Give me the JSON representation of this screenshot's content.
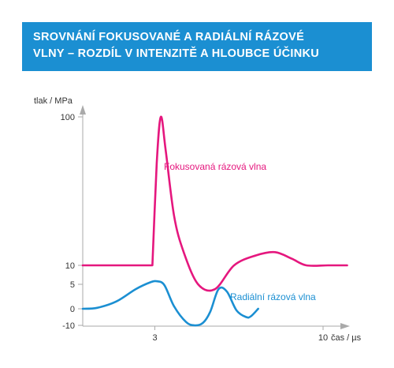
{
  "chart_data": {
    "type": "line",
    "title_lines": [
      "SROVNÁNÍ FOKUSOVANÉ A RADIÁLNÍ RÁZOVÉ",
      "VLNY – ROZDÍL V INTENZITĚ A HLOUBCE ÚČINKU"
    ],
    "xlabel": "čas / µs",
    "ylabel": "tlak / MPa",
    "x_ticks": [
      3,
      10
    ],
    "y_ticks": [
      -10,
      0,
      5,
      10,
      100
    ],
    "grid": false,
    "series": [
      {
        "name": "Fokusovaná rázová vlna",
        "color": "#e5177e",
        "x": [
          0,
          2.9,
          3.08,
          3.25,
          3.45,
          3.8,
          4.2,
          4.8,
          5.5,
          6.3,
          7.2,
          8.0,
          8.7,
          9.3,
          10.2,
          11.0
        ],
        "y": [
          10,
          10,
          72,
          100,
          80,
          40,
          18,
          5,
          4,
          10,
          16,
          18,
          14,
          10,
          10,
          10
        ]
      },
      {
        "name": "Radiální rázová vlna",
        "color": "#1b8fd2",
        "x": [
          0,
          0.6,
          1.4,
          2.2,
          2.8,
          3.1,
          3.4,
          3.8,
          4.3,
          4.65,
          5.0,
          5.3,
          5.65,
          6.0,
          6.4,
          6.8,
          7.0,
          7.3
        ],
        "y": [
          0,
          0.2,
          1.5,
          4.0,
          5.5,
          5.8,
          4.8,
          0.5,
          -8.0,
          -10.0,
          -8.5,
          -2.0,
          4.0,
          3.5,
          -1.0,
          -5.0,
          -4.5,
          0
        ]
      }
    ]
  }
}
